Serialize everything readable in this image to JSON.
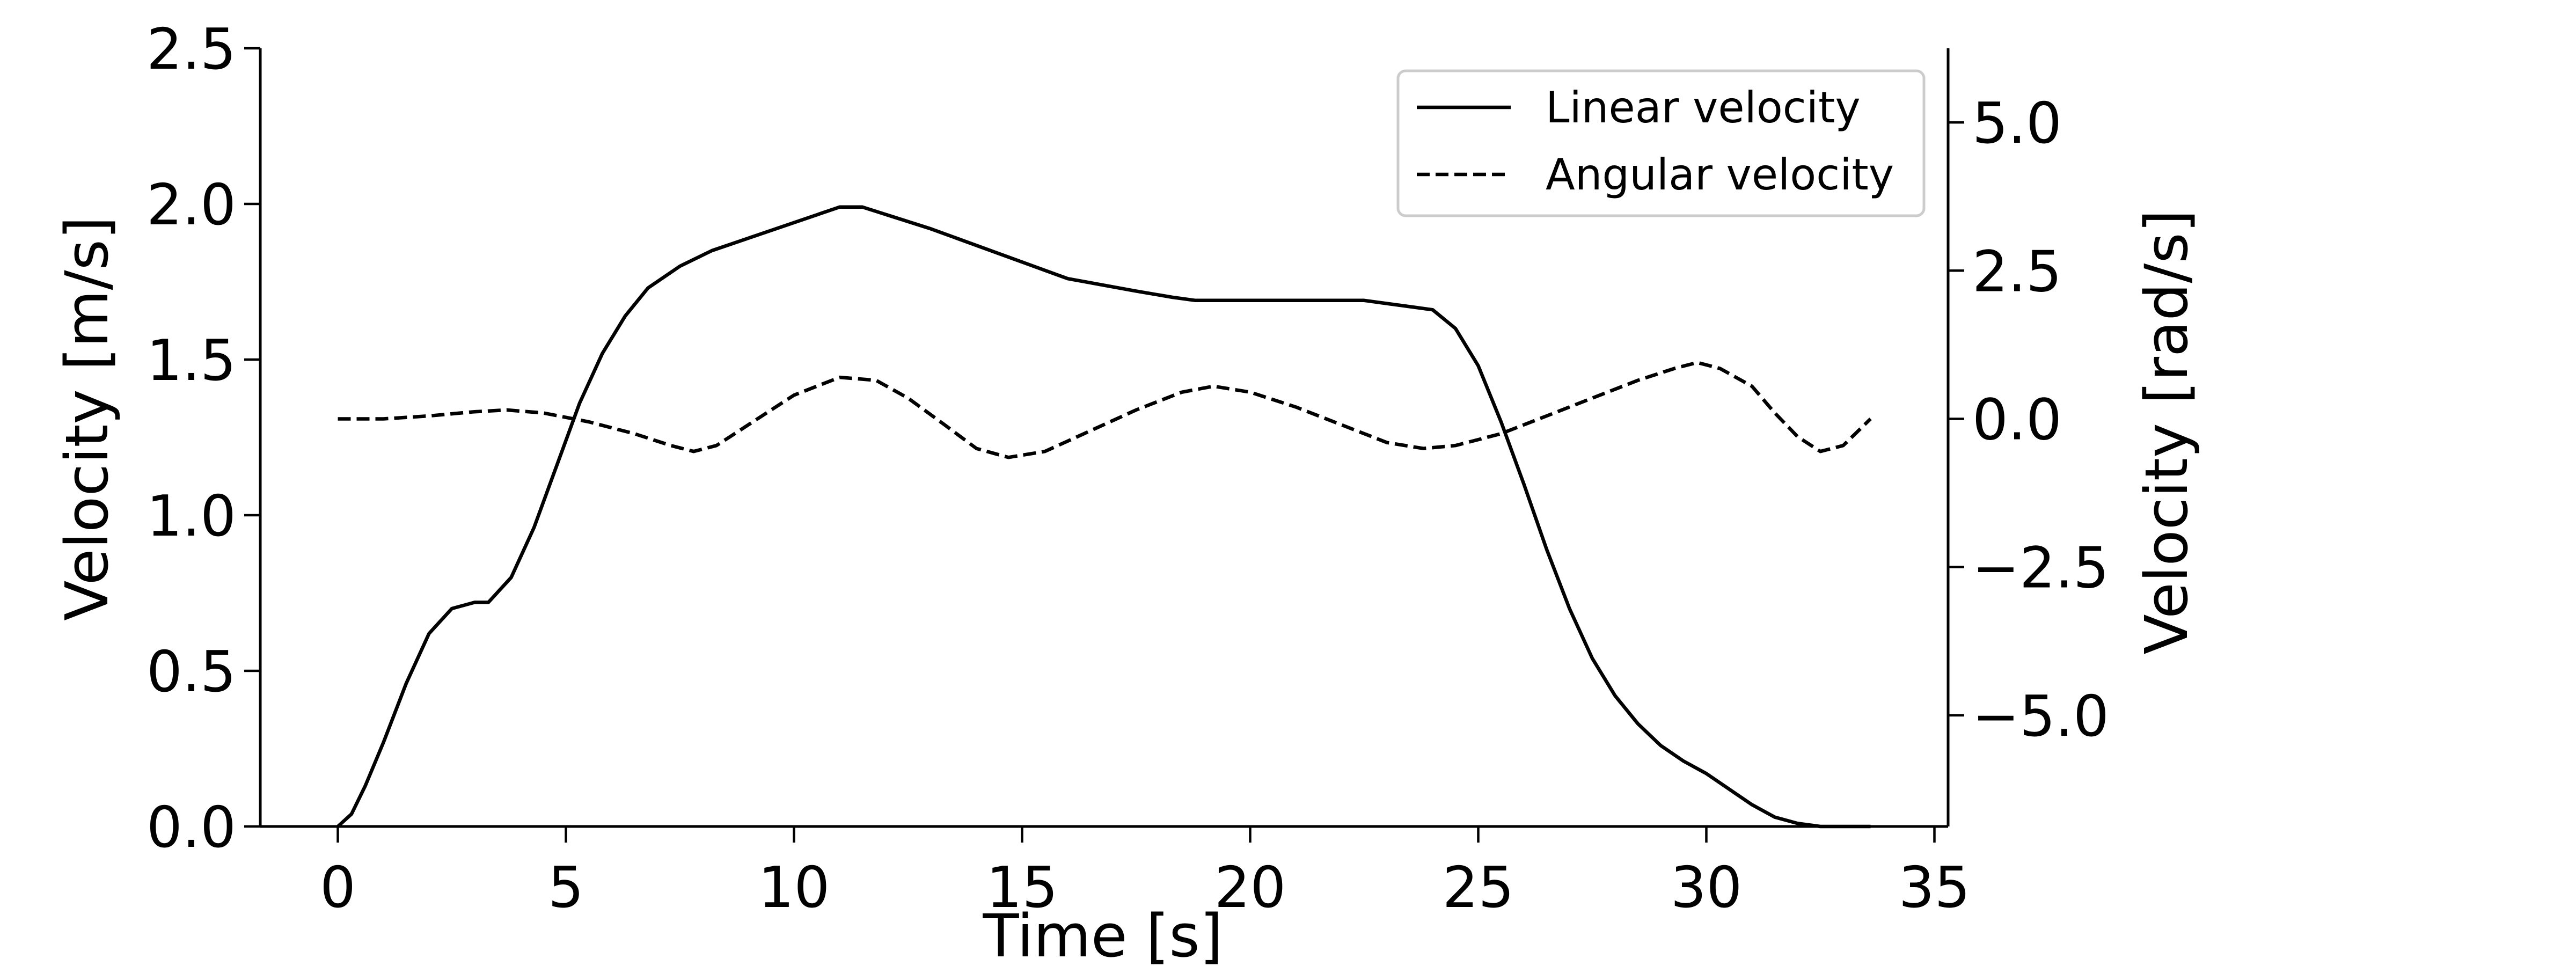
{
  "chart_data": {
    "type": "line",
    "title": "",
    "xlabel": "Time [s]",
    "ylabel": "Velocity [m/s]",
    "y2label": "Velocity [rad/s]",
    "xlim": [
      -1.7,
      35.3
    ],
    "ylim": [
      0.0,
      2.5
    ],
    "y2lim": [
      -6.875,
      6.25
    ],
    "xticks": [
      0,
      5,
      10,
      15,
      20,
      25,
      30,
      35
    ],
    "xtick_labels": [
      "0",
      "5",
      "10",
      "15",
      "20",
      "25",
      "30",
      "35"
    ],
    "yticks": [
      0.0,
      0.5,
      1.0,
      1.5,
      2.0,
      2.5
    ],
    "ytick_labels": [
      "0.0",
      "0.5",
      "1.0",
      "1.5",
      "2.0",
      "2.5"
    ],
    "y2ticks": [
      -5.0,
      -2.5,
      0.0,
      2.5,
      5.0
    ],
    "y2tick_labels": [
      "−5.0",
      "−2.5",
      "0.0",
      "2.5",
      "5.0"
    ],
    "grid": false,
    "legend_position": "top-right",
    "series": [
      {
        "name": "Linear velocity",
        "axis": "left",
        "style": "solid",
        "color": "#000000",
        "x": [
          0,
          0.3,
          0.6,
          1.0,
          1.5,
          2.0,
          2.5,
          3.0,
          3.3,
          3.8,
          4.3,
          4.8,
          5.3,
          5.8,
          6.3,
          6.8,
          7.5,
          8.2,
          9.0,
          10.0,
          11.0,
          11.5,
          13.0,
          14.5,
          16.0,
          17.5,
          18.3,
          18.8,
          19.5,
          21.0,
          22.5,
          23.0,
          23.5,
          24.0,
          24.5,
          25.0,
          25.5,
          26.0,
          26.5,
          27.0,
          27.5,
          28.0,
          28.5,
          29.0,
          29.5,
          30.0,
          30.5,
          31.0,
          31.5,
          32.0,
          32.5,
          33.0,
          33.6
        ],
        "y": [
          0.0,
          0.04,
          0.13,
          0.27,
          0.46,
          0.62,
          0.7,
          0.72,
          0.72,
          0.8,
          0.96,
          1.16,
          1.36,
          1.52,
          1.64,
          1.73,
          1.8,
          1.85,
          1.89,
          1.94,
          1.99,
          1.99,
          1.92,
          1.84,
          1.76,
          1.72,
          1.7,
          1.69,
          1.69,
          1.69,
          1.69,
          1.68,
          1.67,
          1.66,
          1.6,
          1.48,
          1.3,
          1.1,
          0.89,
          0.7,
          0.54,
          0.42,
          0.33,
          0.26,
          0.21,
          0.17,
          0.12,
          0.07,
          0.03,
          0.01,
          0.0,
          0.0,
          0.0
        ]
      },
      {
        "name": "Angular velocity",
        "axis": "right",
        "style": "dashed",
        "color": "#000000",
        "x": [
          0,
          1.0,
          2.0,
          3.0,
          3.7,
          4.5,
          5.5,
          6.5,
          7.3,
          7.8,
          8.3,
          9.0,
          10.0,
          11.0,
          11.8,
          12.5,
          13.3,
          14.0,
          14.7,
          15.5,
          16.5,
          17.5,
          18.5,
          19.2,
          20.0,
          21.0,
          22.0,
          23.0,
          23.8,
          24.5,
          25.5,
          26.5,
          27.5,
          28.5,
          29.3,
          29.8,
          30.3,
          31.0,
          31.5,
          32.0,
          32.5,
          33.0,
          33.6
        ],
        "y": [
          0.0,
          0.0,
          0.05,
          0.12,
          0.15,
          0.1,
          -0.05,
          -0.25,
          -0.45,
          -0.55,
          -0.45,
          -0.1,
          0.4,
          0.7,
          0.65,
          0.35,
          -0.1,
          -0.5,
          -0.65,
          -0.55,
          -0.2,
          0.15,
          0.45,
          0.55,
          0.45,
          0.2,
          -0.1,
          -0.4,
          -0.5,
          -0.45,
          -0.25,
          0.05,
          0.35,
          0.65,
          0.85,
          0.95,
          0.85,
          0.55,
          0.1,
          -0.3,
          -0.55,
          -0.45,
          0.0
        ]
      }
    ]
  }
}
